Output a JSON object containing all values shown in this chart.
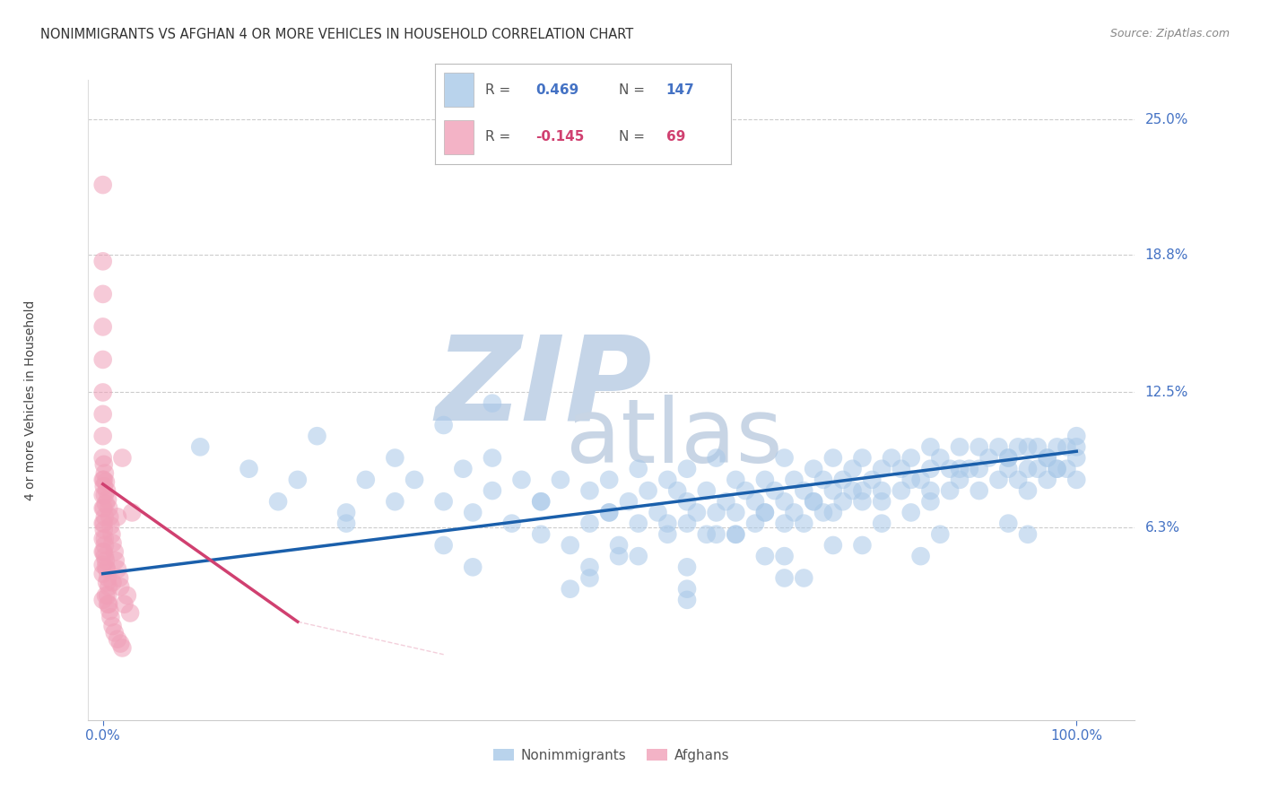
{
  "title": "NONIMMIGRANTS VS AFGHAN 4 OR MORE VEHICLES IN HOUSEHOLD CORRELATION CHART",
  "source": "Source: ZipAtlas.com",
  "ylabel": "4 or more Vehicles in Household",
  "ytick_labels": [
    "6.3%",
    "12.5%",
    "18.8%",
    "25.0%"
  ],
  "ytick_values": [
    0.063,
    0.125,
    0.188,
    0.25
  ],
  "ymin": -0.025,
  "ymax": 0.268,
  "xmin": -0.015,
  "xmax": 1.06,
  "blue_color": "#A8C8E8",
  "pink_color": "#F0A0B8",
  "blue_line_color": "#1A5FAB",
  "pink_line_color": "#D04070",
  "axis_color": "#4472C4",
  "background_color": "#FFFFFF",
  "grid_color": "#CCCCCC",
  "watermark_zip_color": "#C5D5E8",
  "watermark_atlas_color": "#C8D5E5",
  "blue_scatter_x": [
    0.1,
    0.15,
    0.18,
    0.2,
    0.22,
    0.25,
    0.27,
    0.3,
    0.3,
    0.32,
    0.35,
    0.35,
    0.37,
    0.38,
    0.4,
    0.4,
    0.42,
    0.43,
    0.45,
    0.45,
    0.47,
    0.48,
    0.5,
    0.5,
    0.5,
    0.52,
    0.52,
    0.53,
    0.54,
    0.55,
    0.55,
    0.56,
    0.57,
    0.58,
    0.58,
    0.59,
    0.6,
    0.6,
    0.6,
    0.61,
    0.62,
    0.62,
    0.63,
    0.63,
    0.64,
    0.65,
    0.65,
    0.65,
    0.66,
    0.67,
    0.67,
    0.68,
    0.68,
    0.69,
    0.7,
    0.7,
    0.7,
    0.71,
    0.71,
    0.72,
    0.72,
    0.73,
    0.73,
    0.74,
    0.74,
    0.75,
    0.75,
    0.75,
    0.76,
    0.76,
    0.77,
    0.77,
    0.78,
    0.78,
    0.79,
    0.8,
    0.8,
    0.8,
    0.81,
    0.82,
    0.82,
    0.83,
    0.84,
    0.85,
    0.85,
    0.85,
    0.86,
    0.87,
    0.87,
    0.88,
    0.88,
    0.89,
    0.9,
    0.9,
    0.9,
    0.91,
    0.92,
    0.92,
    0.93,
    0.93,
    0.94,
    0.94,
    0.95,
    0.95,
    0.95,
    0.96,
    0.96,
    0.97,
    0.97,
    0.98,
    0.98,
    0.99,
    0.99,
    1.0,
    1.0,
    1.0,
    0.4,
    0.5,
    0.55,
    0.6,
    0.65,
    0.7,
    0.75,
    0.8,
    0.85,
    0.45,
    0.52,
    0.58,
    0.63,
    0.68,
    0.73,
    0.78,
    0.83,
    0.88,
    0.93,
    0.98,
    0.53,
    0.6,
    0.7,
    0.78,
    0.86,
    0.93,
    0.97,
    1.0,
    0.35,
    0.48,
    0.6,
    0.72,
    0.84,
    0.95,
    0.25,
    0.38,
    0.68,
    0.83
  ],
  "blue_scatter_y": [
    0.1,
    0.09,
    0.075,
    0.085,
    0.105,
    0.07,
    0.085,
    0.095,
    0.075,
    0.085,
    0.11,
    0.075,
    0.09,
    0.07,
    0.095,
    0.08,
    0.065,
    0.085,
    0.06,
    0.075,
    0.085,
    0.055,
    0.065,
    0.08,
    0.045,
    0.07,
    0.085,
    0.055,
    0.075,
    0.09,
    0.065,
    0.08,
    0.07,
    0.085,
    0.06,
    0.08,
    0.075,
    0.065,
    0.09,
    0.07,
    0.08,
    0.06,
    0.095,
    0.07,
    0.075,
    0.085,
    0.07,
    0.06,
    0.08,
    0.075,
    0.065,
    0.085,
    0.07,
    0.08,
    0.095,
    0.075,
    0.065,
    0.085,
    0.07,
    0.08,
    0.065,
    0.09,
    0.075,
    0.085,
    0.07,
    0.095,
    0.08,
    0.07,
    0.085,
    0.075,
    0.09,
    0.08,
    0.095,
    0.075,
    0.085,
    0.09,
    0.08,
    0.075,
    0.095,
    0.09,
    0.08,
    0.095,
    0.085,
    0.1,
    0.09,
    0.08,
    0.095,
    0.09,
    0.08,
    0.1,
    0.085,
    0.09,
    0.1,
    0.09,
    0.08,
    0.095,
    0.1,
    0.085,
    0.095,
    0.09,
    0.1,
    0.085,
    0.1,
    0.09,
    0.08,
    0.1,
    0.09,
    0.095,
    0.085,
    0.1,
    0.09,
    0.1,
    0.09,
    0.105,
    0.095,
    0.085,
    0.12,
    0.04,
    0.05,
    0.035,
    0.06,
    0.05,
    0.055,
    0.065,
    0.075,
    0.075,
    0.07,
    0.065,
    0.06,
    0.07,
    0.075,
    0.08,
    0.085,
    0.09,
    0.095,
    0.09,
    0.05,
    0.045,
    0.04,
    0.055,
    0.06,
    0.065,
    0.095,
    0.1,
    0.055,
    0.035,
    0.03,
    0.04,
    0.05,
    0.06,
    0.065,
    0.045,
    0.05,
    0.07
  ],
  "pink_scatter_x": [
    0.0,
    0.0,
    0.0,
    0.0,
    0.0,
    0.0,
    0.0,
    0.0,
    0.0,
    0.0,
    0.0,
    0.0,
    0.0,
    0.0,
    0.0,
    0.0,
    0.001,
    0.001,
    0.001,
    0.001,
    0.001,
    0.002,
    0.002,
    0.002,
    0.002,
    0.003,
    0.003,
    0.003,
    0.004,
    0.004,
    0.005,
    0.005,
    0.006,
    0.006,
    0.007,
    0.008,
    0.009,
    0.01,
    0.01,
    0.012,
    0.013,
    0.015,
    0.015,
    0.017,
    0.018,
    0.02,
    0.022,
    0.025,
    0.028,
    0.03,
    0.0,
    0.001,
    0.002,
    0.003,
    0.004,
    0.005,
    0.006,
    0.007,
    0.008,
    0.01,
    0.012,
    0.015,
    0.018,
    0.02,
    0.0,
    0.001,
    0.002,
    0.003,
    0.005
  ],
  "pink_scatter_y": [
    0.22,
    0.185,
    0.17,
    0.155,
    0.14,
    0.125,
    0.115,
    0.105,
    0.095,
    0.085,
    0.078,
    0.072,
    0.065,
    0.058,
    0.052,
    0.046,
    0.092,
    0.082,
    0.072,
    0.062,
    0.052,
    0.088,
    0.078,
    0.068,
    0.058,
    0.084,
    0.074,
    0.048,
    0.08,
    0.044,
    0.076,
    0.04,
    0.072,
    0.036,
    0.068,
    0.064,
    0.06,
    0.056,
    0.038,
    0.052,
    0.048,
    0.068,
    0.044,
    0.04,
    0.036,
    0.095,
    0.028,
    0.032,
    0.024,
    0.07,
    0.03,
    0.085,
    0.055,
    0.045,
    0.038,
    0.032,
    0.028,
    0.025,
    0.022,
    0.018,
    0.015,
    0.012,
    0.01,
    0.008,
    0.042,
    0.065,
    0.05,
    0.032,
    0.028
  ],
  "blue_line_x0": 0.0,
  "blue_line_y0": 0.042,
  "blue_line_x1": 1.0,
  "blue_line_y1": 0.098,
  "pink_line_x0": 0.0,
  "pink_line_y0": 0.083,
  "pink_line_x1": 0.2,
  "pink_line_y1": 0.02
}
